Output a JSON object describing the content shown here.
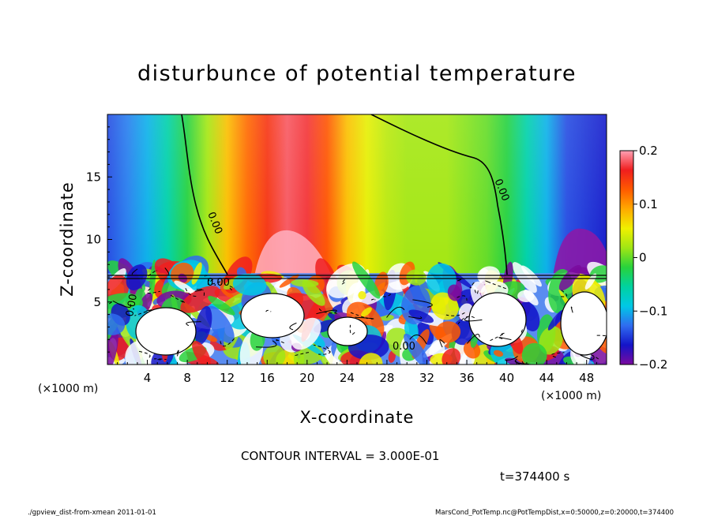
{
  "chart_data": {
    "type": "heatmap",
    "title": "disturbunce of potential temperature",
    "xlabel": "X-coordinate",
    "ylabel": "Z-coordinate",
    "x_unit": "(×1000 m)",
    "y_unit": "(×1000 m)",
    "xlim": [
      0,
      50
    ],
    "ylim": [
      0,
      20
    ],
    "x_ticks": [
      4,
      8,
      12,
      16,
      20,
      24,
      28,
      32,
      36,
      40,
      44,
      48
    ],
    "y_ticks": [
      5,
      10,
      15
    ],
    "colorbar": {
      "min": -0.2,
      "max": 0.2,
      "ticks": [
        {
          "value": 0.2,
          "label": "0.2"
        },
        {
          "value": 0.1,
          "label": "0.1"
        },
        {
          "value": 0,
          "label": "0"
        },
        {
          "value": -0.1,
          "label": "−0.1"
        },
        {
          "value": -0.2,
          "label": "−0.2"
        }
      ],
      "stops": [
        "#7a0a9e",
        "#1414c8",
        "#2f6cf0",
        "#00c8e6",
        "#00d2a0",
        "#28d23c",
        "#a0e614",
        "#f0f000",
        "#ffaa00",
        "#ff5a00",
        "#f01e1e",
        "#ffa0b4"
      ]
    },
    "upper_layer": {
      "z_range": [
        7.3,
        20
      ],
      "columns": [
        {
          "x": 0,
          "value": -0.14
        },
        {
          "x": 2,
          "value": -0.12
        },
        {
          "x": 4,
          "value": -0.1
        },
        {
          "x": 6,
          "value": -0.06
        },
        {
          "x": 8,
          "value": -0.02
        },
        {
          "x": 10,
          "value": 0.02
        },
        {
          "x": 12,
          "value": 0.08
        },
        {
          "x": 14,
          "value": 0.12
        },
        {
          "x": 16,
          "value": 0.15
        },
        {
          "x": 18,
          "value": 0.18
        },
        {
          "x": 20,
          "value": 0.17
        },
        {
          "x": 22,
          "value": 0.13
        },
        {
          "x": 24,
          "value": 0.08
        },
        {
          "x": 26,
          "value": 0.05
        },
        {
          "x": 28,
          "value": 0.03
        },
        {
          "x": 30,
          "value": 0.02
        },
        {
          "x": 32,
          "value": 0.02
        },
        {
          "x": 34,
          "value": 0.02
        },
        {
          "x": 36,
          "value": 0.01
        },
        {
          "x": 38,
          "value": 0.0
        },
        {
          "x": 40,
          "value": -0.02
        },
        {
          "x": 42,
          "value": -0.06
        },
        {
          "x": 44,
          "value": -0.1
        },
        {
          "x": 46,
          "value": -0.14
        },
        {
          "x": 48,
          "value": -0.15
        },
        {
          "x": 50,
          "value": -0.16
        }
      ]
    },
    "zero_contour_labels": [
      "0.00",
      "0.00",
      "0.00",
      "0.00",
      "0.00"
    ],
    "contour_interval": "CONTOUR INTERVAL = 3.000E-01",
    "time_label": "t=374400 s"
  },
  "footer": {
    "left": "./gpview_dist-from-xmean  2011-01-01",
    "right": "MarsCond_PotTemp.nc@PotTempDist,x=0:50000,z=0:20000,t=374400"
  }
}
